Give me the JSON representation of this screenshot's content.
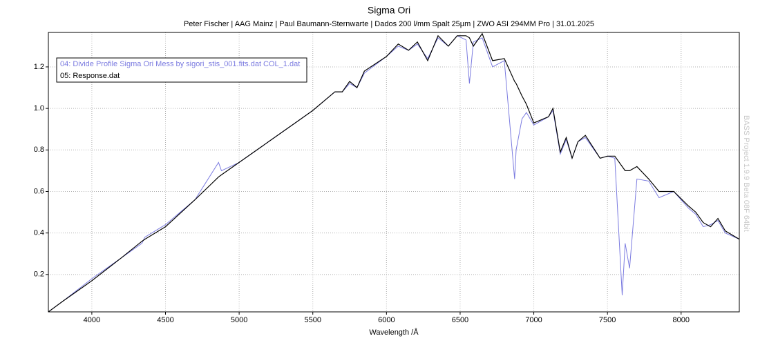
{
  "chart_data": {
    "type": "line",
    "title": "Sigma Ori",
    "subtitle": "Peter Fischer | AAG Mainz | Paul Baumann-Sternwarte | Dados 200 l/mm Spalt 25µm | ZWO ASI 294MM Pro | 31.01.2025",
    "xlabel": "Wavelength /Å",
    "annotation": "BASS Project 1.9.9 Beta 08F 64bit",
    "x": [
      3705,
      3800,
      4000,
      4200,
      4340,
      4360,
      4500,
      4700,
      4860,
      4880,
      5000,
      5200,
      5400,
      5500,
      5650,
      5700,
      5750,
      5800,
      5850,
      6000,
      6080,
      6150,
      6210,
      6280,
      6350,
      6420,
      6480,
      6540,
      6563,
      6590,
      6650,
      6720,
      6800,
      6870,
      6880,
      6920,
      6950,
      7000,
      7100,
      7130,
      7180,
      7220,
      7260,
      7300,
      7350,
      7450,
      7500,
      7550,
      7600,
      7620,
      7650,
      7700,
      7780,
      7850,
      7950,
      8050,
      8100,
      8150,
      8200,
      8250,
      8300,
      8395
    ],
    "series": [
      {
        "name": "04: Divide Profile Sigma Ori Mess by sigori_stis_001.fits.dat COL_1.dat",
        "color": "#7b7be0",
        "values": [
          0.02,
          0.07,
          0.18,
          0.28,
          0.35,
          0.38,
          0.44,
          0.56,
          0.74,
          0.7,
          0.74,
          0.84,
          0.94,
          0.99,
          1.08,
          1.08,
          1.12,
          1.1,
          1.17,
          1.25,
          1.3,
          1.28,
          1.31,
          1.24,
          1.34,
          1.3,
          1.35,
          1.33,
          1.12,
          1.32,
          1.34,
          1.2,
          1.23,
          0.66,
          0.8,
          0.95,
          0.98,
          0.92,
          0.96,
          0.99,
          0.78,
          0.85,
          0.76,
          0.84,
          0.86,
          0.76,
          0.77,
          0.76,
          0.1,
          0.35,
          0.23,
          0.66,
          0.65,
          0.57,
          0.6,
          0.52,
          0.49,
          0.43,
          0.44,
          0.46,
          0.4,
          0.37
        ]
      },
      {
        "name": "05: Response.dat",
        "color": "#000000",
        "values": [
          0.02,
          0.07,
          0.17,
          0.28,
          0.36,
          0.37,
          0.43,
          0.56,
          0.67,
          0.68,
          0.74,
          0.84,
          0.94,
          0.99,
          1.08,
          1.08,
          1.13,
          1.1,
          1.18,
          1.25,
          1.31,
          1.28,
          1.32,
          1.23,
          1.35,
          1.3,
          1.35,
          1.35,
          1.34,
          1.3,
          1.36,
          1.23,
          1.24,
          1.13,
          1.12,
          1.06,
          1.02,
          0.93,
          0.96,
          1.0,
          0.79,
          0.86,
          0.76,
          0.84,
          0.87,
          0.76,
          0.77,
          0.77,
          0.72,
          0.7,
          0.7,
          0.72,
          0.66,
          0.6,
          0.6,
          0.53,
          0.5,
          0.45,
          0.43,
          0.47,
          0.41,
          0.37
        ]
      }
    ],
    "xlim": [
      3705,
      8395
    ],
    "xticks": [
      4000,
      4500,
      5000,
      5500,
      6000,
      6500,
      7000,
      7500,
      8000
    ],
    "ylim": [
      0.02,
      1.366
    ],
    "yticks": [
      0.2,
      0.4,
      0.6,
      0.8,
      {
        "value": 1,
        "label": "1.0"
      },
      1.2
    ],
    "grid": true,
    "legend": "upper-left"
  }
}
